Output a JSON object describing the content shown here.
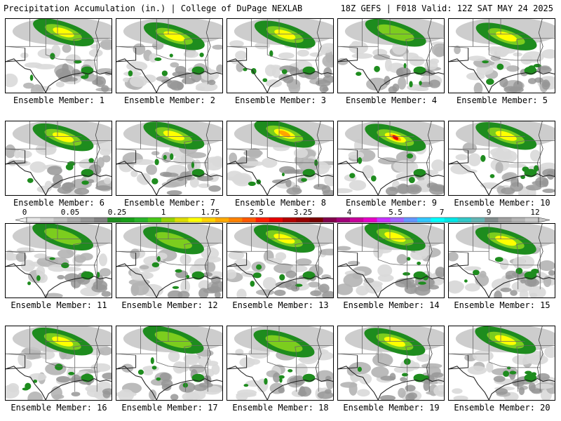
{
  "header": {
    "left": "Precipitation Accumulation (in.) | College of DuPage NEXLAB",
    "right": "18Z GEFS | F018 Valid: 12Z SAT MAY 24 2025"
  },
  "panels": [
    {
      "label": "Ensemble Member: 1",
      "max_category": "1.75"
    },
    {
      "label": "Ensemble Member: 2",
      "max_category": "1.75"
    },
    {
      "label": "Ensemble Member: 3",
      "max_category": "1.75"
    },
    {
      "label": "Ensemble Member: 4",
      "max_category": "1"
    },
    {
      "label": "Ensemble Member: 5",
      "max_category": "1.75"
    },
    {
      "label": "Ensemble Member: 6",
      "max_category": "1.75"
    },
    {
      "label": "Ensemble Member: 7",
      "max_category": "1.75"
    },
    {
      "label": "Ensemble Member: 8",
      "max_category": "2.5"
    },
    {
      "label": "Ensemble Member: 9",
      "max_category": "3.25"
    },
    {
      "label": "Ensemble Member: 10",
      "max_category": "1.75"
    },
    {
      "label": "Ensemble Member: 11",
      "max_category": "1"
    },
    {
      "label": "Ensemble Member: 12",
      "max_category": "1"
    },
    {
      "label": "Ensemble Member: 13",
      "max_category": "1.75"
    },
    {
      "label": "Ensemble Member: 14",
      "max_category": "1.75"
    },
    {
      "label": "Ensemble Member: 15",
      "max_category": "1.75"
    },
    {
      "label": "Ensemble Member: 16",
      "max_category": "1.75"
    },
    {
      "label": "Ensemble Member: 17",
      "max_category": "1"
    },
    {
      "label": "Ensemble Member: 18",
      "max_category": "1"
    },
    {
      "label": "Ensemble Member: 19",
      "max_category": "1.75"
    },
    {
      "label": "Ensemble Member: 20",
      "max_category": "1.75"
    }
  ],
  "colorbar": {
    "labels": [
      "0",
      "0.05",
      "0.25",
      "1",
      "1.75",
      "2.5",
      "3.25",
      "4",
      "5.5",
      "7",
      "9",
      "12"
    ],
    "colors": [
      "#e6e6e6",
      "#d2d2d2",
      "#bebebe",
      "#aaaaaa",
      "#969696",
      "#828282",
      "#1e8c1e",
      "#18a018",
      "#28b428",
      "#46c818",
      "#96d200",
      "#dcdc00",
      "#ffff00",
      "#ffd200",
      "#ffaa00",
      "#ff8200",
      "#ff5a00",
      "#ff1e00",
      "#e60000",
      "#b40000",
      "#960000",
      "#780000",
      "#82004b",
      "#a00078",
      "#c8009b",
      "#e600c8",
      "#c832ff",
      "#a064ff",
      "#6496ff",
      "#32c8ff",
      "#00ffff",
      "#00e6e6",
      "#32c8c8",
      "#64b4b4",
      "#828c8c",
      "#a0a0a0",
      "#b4b4b4",
      "#c8c8c8"
    ]
  },
  "legend_colors": {
    "light_gray": "#d9d9d9",
    "dark_gray": "#a0a0a0",
    "green": "#1e8c1e",
    "lime": "#7ccd1e",
    "yellow": "#ffff00",
    "orange": "#ffa500",
    "red": "#e60000"
  }
}
